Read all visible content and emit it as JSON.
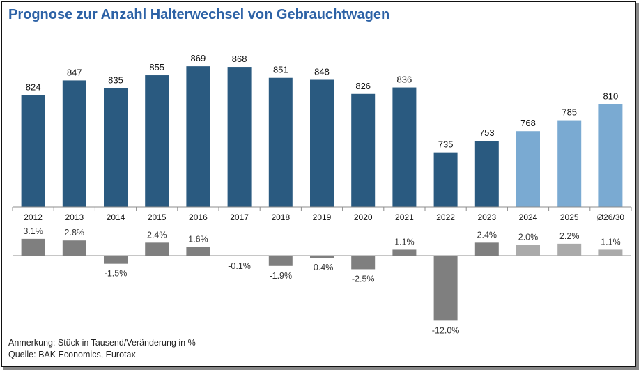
{
  "title": "Prognose zur Anzahl Halterwechsel von Gebrauchtwagen",
  "notes": {
    "remark": "Anmerkung: Stück in Tausend/Veränderung in %",
    "source": "Quelle: BAK Economics, Eurotax"
  },
  "colors": {
    "bar_actual": "#2a5a80",
    "bar_forecast": "#7aaad2",
    "change_actual": "#7f7f7f",
    "change_forecast": "#aaaaaa",
    "title": "#2d62a6"
  },
  "chart_data": [
    {
      "type": "bar",
      "categories": [
        "2012",
        "2013",
        "2014",
        "2015",
        "2016",
        "2017",
        "2018",
        "2019",
        "2020",
        "2021",
        "2022",
        "2023",
        "2024",
        "2025",
        "Ø26/30"
      ],
      "series": [
        {
          "values": [
            824,
            847,
            835,
            855,
            869,
            868,
            851,
            848,
            826,
            836,
            735,
            753,
            768,
            785,
            810
          ],
          "value_labels": [
            "824",
            "847",
            "835",
            "855",
            "869",
            "868",
            "851",
            "848",
            "826",
            "836",
            "735",
            "753",
            "768",
            "785",
            "810"
          ]
        }
      ],
      "forecast_from_index": 12,
      "ylim": [
        650,
        880
      ],
      "xlabel": "",
      "ylabel": "",
      "grid": false
    },
    {
      "type": "bar",
      "categories": [
        "2012",
        "2013",
        "2014",
        "2015",
        "2016",
        "2017",
        "2018",
        "2019",
        "2020",
        "2021",
        "2022",
        "2023",
        "2024",
        "2025",
        "Ø26/30"
      ],
      "series": [
        {
          "values": [
            3.1,
            2.8,
            -1.5,
            2.4,
            1.6,
            -0.1,
            -1.9,
            -0.4,
            -2.5,
            1.1,
            -12.0,
            2.4,
            2.0,
            2.2,
            1.1
          ],
          "value_labels": [
            "3.1%",
            "2.8%",
            "-1.5%",
            "2.4%",
            "1.6%",
            "-0.1%",
            "-1.9%",
            "-0.4%",
            "-2.5%",
            "1.1%",
            "-12.0%",
            "2.4%",
            "2.0%",
            "2.2%",
            "1.1%"
          ]
        }
      ],
      "forecast_from_index": 12,
      "ylim": [
        -12.5,
        3.5
      ],
      "xlabel": "",
      "ylabel": "",
      "grid": false
    }
  ]
}
